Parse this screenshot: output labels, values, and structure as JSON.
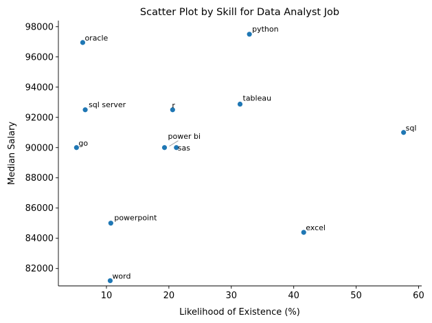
{
  "chart_data": {
    "type": "scatter",
    "title": "Scatter Plot by Skill for Data Analyst Job",
    "xlabel": "Likelihood of Existence (%)",
    "ylabel": "Median Salary",
    "xlim": [
      2.3,
      60.5
    ],
    "ylim": [
      80850,
      98400
    ],
    "xticks": [
      10,
      20,
      30,
      40,
      50,
      60
    ],
    "yticks": [
      82000,
      84000,
      86000,
      88000,
      90000,
      92000,
      94000,
      96000,
      98000
    ],
    "grid": false,
    "point_color": "#1f77b4",
    "points": [
      {
        "label": "oracle",
        "x": 6.2,
        "y": 96950
      },
      {
        "label": "python",
        "x": 32.9,
        "y": 97500
      },
      {
        "label": "sql server",
        "x": 6.6,
        "y": 92500
      },
      {
        "label": "r",
        "x": 20.6,
        "y": 92500
      },
      {
        "label": "tableau",
        "x": 31.4,
        "y": 92875
      },
      {
        "label": "sql",
        "x": 57.6,
        "y": 91000
      },
      {
        "label": "go",
        "x": 5.2,
        "y": 90000
      },
      {
        "label": "power bi",
        "x": 19.3,
        "y": 90000
      },
      {
        "label": "sas",
        "x": 21.2,
        "y": 90000
      },
      {
        "label": "powerpoint",
        "x": 10.7,
        "y": 85000
      },
      {
        "label": "excel",
        "x": 41.6,
        "y": 84392
      },
      {
        "label": "word",
        "x": 10.6,
        "y": 81194
      }
    ]
  }
}
